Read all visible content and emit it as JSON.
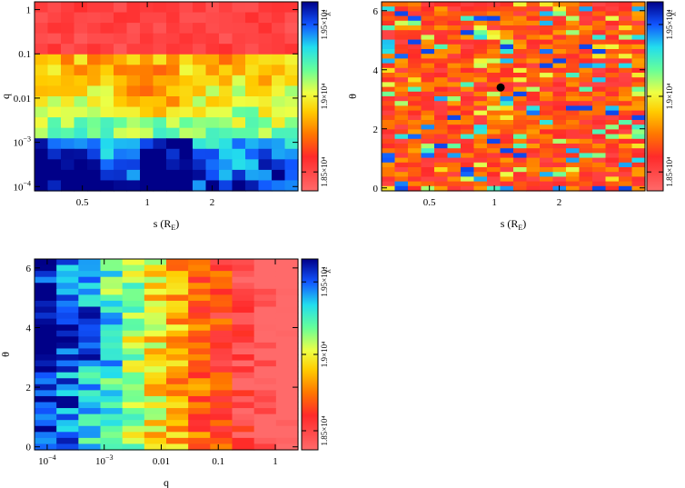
{
  "chart_data": [
    {
      "type": "heatmap",
      "panel": "top-left",
      "xlabel": "s (R_E)",
      "ylabel": "q",
      "xscale": "log",
      "yscale": "log",
      "xlim": [
        0.3,
        5.0
      ],
      "ylim": [
        8e-05,
        1.5
      ],
      "xticks": [
        {
          "v": 0.5,
          "label": "0.5"
        },
        {
          "v": 1,
          "label": "1"
        },
        {
          "v": 2,
          "label": "2"
        }
      ],
      "yticks": [
        {
          "v": 0.0001,
          "label": "10",
          "sup": "−4"
        },
        {
          "v": 0.001,
          "label": "10",
          "sup": "−3"
        },
        {
          "v": 0.01,
          "label": "0.01"
        },
        {
          "v": 0.1,
          "label": "0.1"
        },
        {
          "v": 1,
          "label": "1"
        }
      ],
      "grid": {
        "rows": 18,
        "cols": 20
      },
      "colorbar": {
        "label": "χ²",
        "ticks": [
          "1.85×10⁴",
          "1.9×10⁴",
          "1.95×10⁴"
        ]
      },
      "summary": "High q (0.05–1) gives lowest chi-square (red); low q gives high chi-square (yellow to blue)"
    },
    {
      "type": "heatmap",
      "panel": "top-right",
      "xlabel": "s (R_E)",
      "ylabel": "θ",
      "xscale": "log",
      "yscale": "linear",
      "xlim": [
        0.3,
        5.0
      ],
      "ylim": [
        -0.1,
        6.3
      ],
      "xticks": [
        {
          "v": 0.5,
          "label": "0.5"
        },
        {
          "v": 1,
          "label": "1"
        },
        {
          "v": 2,
          "label": "2"
        }
      ],
      "yticks": [
        {
          "v": 0,
          "label": "0"
        },
        {
          "v": 2,
          "label": "2"
        },
        {
          "v": 4,
          "label": "4"
        },
        {
          "v": 6,
          "label": "6"
        }
      ],
      "grid": {
        "rows": 40,
        "cols": 20
      },
      "best_fit": {
        "s": 1.07,
        "theta": 3.4
      },
      "colorbar": {
        "label": "χ²",
        "ticks": [
          "1.85×10⁴",
          "1.9×10⁴",
          "1.95×10⁴"
        ]
      },
      "summary": "Noisy map with minimum marked by black dot near s≈1.07, θ≈3.4"
    },
    {
      "type": "heatmap",
      "panel": "bottom-left",
      "xlabel": "q",
      "ylabel": "θ",
      "xscale": "log",
      "yscale": "linear",
      "xlim": [
        6e-05,
        2.5
      ],
      "ylim": [
        -0.1,
        6.3
      ],
      "xticks": [
        {
          "v": 0.0001,
          "label": "10",
          "sup": "−4"
        },
        {
          "v": 0.001,
          "label": "10",
          "sup": "−3"
        },
        {
          "v": 0.01,
          "label": "0.01"
        },
        {
          "v": 0.1,
          "label": "0.1"
        },
        {
          "v": 1,
          "label": "1"
        }
      ],
      "yticks": [
        {
          "v": 0,
          "label": "0"
        },
        {
          "v": 2,
          "label": "2"
        },
        {
          "v": 4,
          "label": "4"
        },
        {
          "v": 6,
          "label": "6"
        }
      ],
      "grid": {
        "rows": 32,
        "cols": 12
      },
      "colorbar": {
        "label": "χ²",
        "ticks": [
          "1.85×10⁴",
          "1.9×10⁴",
          "1.95×10⁴"
        ]
      },
      "summary": "Chi-square decreases strongly with increasing q; blue at q<10⁻³, red at q>0.05"
    }
  ]
}
